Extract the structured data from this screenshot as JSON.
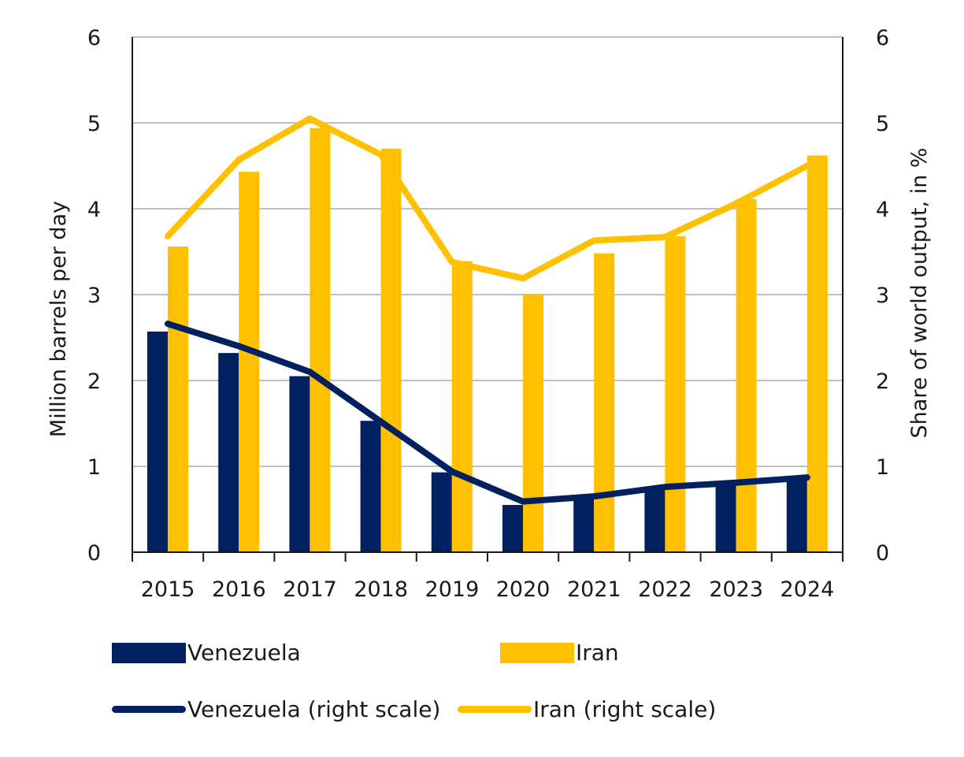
{
  "chart_data": {
    "type": "bar",
    "title": "",
    "xlabel": "",
    "ylabel": "Million barrels per day",
    "ylabel_right": "Share of world output, in %",
    "ylim": [
      0,
      6
    ],
    "ylim_right": [
      0,
      6
    ],
    "yticks": [
      "0",
      "1",
      "2",
      "3",
      "4",
      "5",
      "6"
    ],
    "yticks_right": [
      "0",
      "1",
      "2",
      "3",
      "4",
      "5",
      "6"
    ],
    "grid": true,
    "legend_position": "bottom",
    "categories": [
      "2015",
      "2016",
      "2017",
      "2018",
      "2019",
      "2020",
      "2021",
      "2022",
      "2023",
      "2024"
    ],
    "series": [
      {
        "name": "Venezuela",
        "kind": "bar",
        "axis": "left",
        "color": "#002060",
        "values": [
          2.57,
          2.32,
          2.05,
          1.53,
          0.93,
          0.55,
          0.63,
          0.73,
          0.79,
          0.88
        ]
      },
      {
        "name": "Iran",
        "kind": "bar",
        "axis": "left",
        "color": "#FFC000",
        "values": [
          3.56,
          4.43,
          4.94,
          4.7,
          3.39,
          3.0,
          3.48,
          3.68,
          4.11,
          4.62
        ]
      },
      {
        "name": "Venezuela (right scale)",
        "kind": "line",
        "axis": "right",
        "color": "#002060",
        "values": [
          2.66,
          2.4,
          2.1,
          1.52,
          0.94,
          0.59,
          0.65,
          0.76,
          0.81,
          0.87
        ]
      },
      {
        "name": "Iran (right scale)",
        "kind": "line",
        "axis": "right",
        "color": "#FFC000",
        "values": [
          3.68,
          4.57,
          5.05,
          4.63,
          3.38,
          3.19,
          3.63,
          3.67,
          4.06,
          4.5
        ]
      }
    ]
  },
  "legend": {
    "items": [
      {
        "label": "Venezuela",
        "type": "box",
        "color": "#002060"
      },
      {
        "label": "Iran",
        "type": "box",
        "color": "#FFC000"
      },
      {
        "label": "Venezuela (right scale)",
        "type": "line",
        "color": "#002060"
      },
      {
        "label": "Iran (right scale)",
        "type": "line",
        "color": "#FFC000"
      }
    ]
  }
}
